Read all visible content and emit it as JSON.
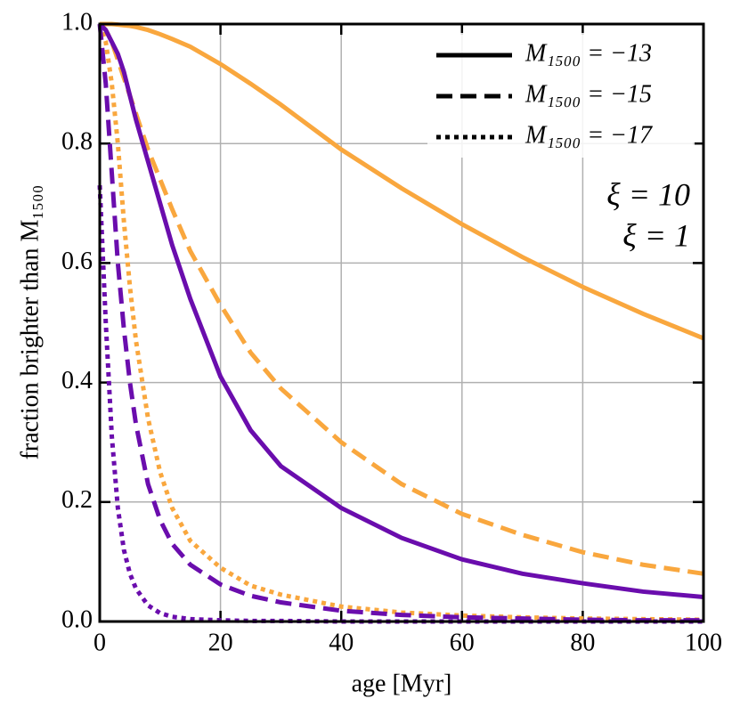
{
  "chart_data": {
    "type": "line",
    "xlabel": "age [Myr]",
    "ylabel": "fraction brighter than M₁₅₀₀",
    "x": [
      0,
      1,
      2,
      3,
      4,
      5,
      6,
      8,
      10,
      12,
      15,
      20,
      25,
      30,
      40,
      50,
      60,
      70,
      80,
      90,
      100
    ],
    "series": [
      {
        "color": "#f9a73e",
        "dash": "solid",
        "values": [
          1.0,
          1.0,
          1.0,
          0.999,
          0.998,
          0.997,
          0.995,
          0.99,
          0.983,
          0.975,
          0.962,
          0.933,
          0.9,
          0.865,
          0.79,
          0.725,
          0.665,
          0.61,
          0.56,
          0.515,
          0.474
        ]
      },
      {
        "color": "#f9a73e",
        "dash": "dashed",
        "values": [
          1.0,
          0.99,
          0.97,
          0.94,
          0.91,
          0.88,
          0.85,
          0.79,
          0.74,
          0.69,
          0.62,
          0.53,
          0.45,
          0.39,
          0.3,
          0.23,
          0.18,
          0.145,
          0.116,
          0.095,
          0.08
        ]
      },
      {
        "color": "#f9a73e",
        "dash": "dotted",
        "values": [
          1.0,
          0.97,
          0.9,
          0.8,
          0.67,
          0.56,
          0.47,
          0.34,
          0.25,
          0.19,
          0.135,
          0.09,
          0.06,
          0.045,
          0.025,
          0.015,
          0.01,
          0.007,
          0.005,
          0.004,
          0.003
        ]
      },
      {
        "color": "#6a0dad",
        "dash": "solid",
        "values": [
          1.0,
          0.99,
          0.97,
          0.95,
          0.92,
          0.88,
          0.84,
          0.77,
          0.7,
          0.63,
          0.54,
          0.41,
          0.32,
          0.26,
          0.19,
          0.14,
          0.104,
          0.08,
          0.064,
          0.05,
          0.041
        ]
      },
      {
        "color": "#6a0dad",
        "dash": "dashed",
        "values": [
          1.0,
          0.9,
          0.75,
          0.6,
          0.49,
          0.4,
          0.33,
          0.23,
          0.17,
          0.13,
          0.095,
          0.062,
          0.043,
          0.032,
          0.018,
          0.011,
          0.007,
          0.005,
          0.003,
          0.002,
          0.002
        ]
      },
      {
        "color": "#6a0dad",
        "dash": "dotted",
        "values": [
          0.73,
          0.5,
          0.31,
          0.19,
          0.12,
          0.08,
          0.055,
          0.027,
          0.014,
          0.008,
          0.004,
          0.002,
          0.001,
          0.001,
          0,
          0,
          0,
          0,
          0,
          0,
          0
        ]
      }
    ],
    "legend": [
      {
        "label": "M₁₅₀₀ = −13",
        "dash": "solid",
        "color": "#000000"
      },
      {
        "label": "M₁₅₀₀ = −15",
        "dash": "dashed",
        "color": "#000000"
      },
      {
        "label": "M₁₅₀₀ = −17",
        "dash": "dotted",
        "color": "#000000"
      }
    ],
    "legend_position": "upper right",
    "annotations": [
      {
        "text": "ξ = 10",
        "color": "#f9a73e"
      },
      {
        "text": "ξ = 1",
        "color": "#6a0dad"
      }
    ],
    "xlim": [
      0,
      100
    ],
    "ylim": [
      0,
      1
    ],
    "xticks": [
      0,
      20,
      40,
      60,
      80,
      100
    ],
    "yticks": [
      {
        "value": 0,
        "label": "0.0"
      },
      0.2,
      0.4,
      0.6,
      0.8,
      {
        "value": 1,
        "label": "1.0"
      }
    ],
    "grid": true
  }
}
